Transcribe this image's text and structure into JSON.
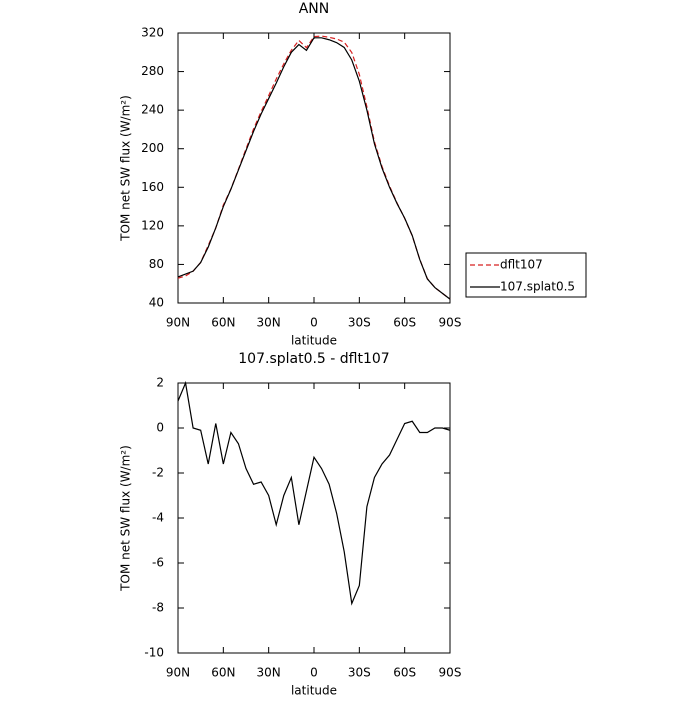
{
  "chart_data": [
    {
      "type": "line",
      "title": "ANN",
      "x_label": "latitude",
      "y_label": "TOM net SW flux (W/m²)",
      "x": [
        90,
        85,
        80,
        75,
        70,
        65,
        60,
        55,
        50,
        45,
        40,
        35,
        30,
        25,
        20,
        15,
        10,
        5,
        0,
        -5,
        -10,
        -15,
        -20,
        -25,
        -30,
        -35,
        -40,
        -45,
        -50,
        -55,
        -60,
        -65,
        -70,
        -75,
        -80,
        -85,
        -90
      ],
      "xlim": [
        90,
        -90
      ],
      "xticks": [
        {
          "value": 90,
          "label": "90N"
        },
        {
          "value": 60,
          "label": "60N"
        },
        {
          "value": 30,
          "label": "30N"
        },
        0,
        {
          "value": -30,
          "label": "30S"
        },
        {
          "value": -60,
          "label": "60S"
        },
        {
          "value": -90,
          "label": "90S"
        }
      ],
      "ylim": [
        40,
        320
      ],
      "yticks": [
        40,
        80,
        120,
        160,
        200,
        240,
        280,
        320
      ],
      "legend": "right",
      "series": [
        {
          "name": "dflt107",
          "color": "#d62020",
          "dash": true,
          "values": [
            65.8,
            68,
            73,
            82.1,
            99.6,
            117.8,
            141.6,
            158.2,
            178.7,
            199.8,
            220.5,
            238.4,
            255,
            272.3,
            288,
            302.2,
            312.3,
            304.8,
            316.3,
            316.8,
            315.5,
            313.8,
            310.5,
            299.8,
            277,
            243.5,
            207.2,
            181.6,
            161.2,
            143.5,
            127.8,
            109.7,
            85.2,
            65.2,
            56,
            50,
            44.1
          ]
        },
        {
          "name": "107.splat0.5",
          "color": "#000000",
          "dash": false,
          "values": [
            67,
            70,
            73,
            82,
            98,
            118,
            140,
            158,
            178,
            198,
            218,
            236,
            252,
            268,
            285,
            300,
            308,
            302,
            315,
            315,
            313,
            310,
            305,
            292,
            270,
            240,
            205,
            180,
            160,
            143,
            128,
            110,
            85,
            65,
            56,
            50,
            44
          ]
        }
      ]
    },
    {
      "type": "line",
      "title": "107.splat0.5 - dflt107",
      "x_label": "latitude",
      "y_label": "TOM net SW flux (W/m²)",
      "x": [
        90,
        85,
        80,
        75,
        70,
        65,
        60,
        55,
        50,
        45,
        40,
        35,
        30,
        25,
        20,
        15,
        10,
        5,
        0,
        -5,
        -10,
        -15,
        -20,
        -25,
        -30,
        -35,
        -40,
        -45,
        -50,
        -55,
        -60,
        -65,
        -70,
        -75,
        -80,
        -85,
        -90
      ],
      "xlim": [
        90,
        -90
      ],
      "xticks": [
        {
          "value": 90,
          "label": "90N"
        },
        {
          "value": 60,
          "label": "60N"
        },
        {
          "value": 30,
          "label": "30N"
        },
        0,
        {
          "value": -30,
          "label": "30S"
        },
        {
          "value": -60,
          "label": "60S"
        },
        {
          "value": -90,
          "label": "90S"
        }
      ],
      "ylim": [
        -10,
        2
      ],
      "yticks": [
        -10,
        -8,
        -6,
        -4,
        -2,
        0,
        2
      ],
      "series": [
        {
          "color": "#000000",
          "dash": false,
          "values": [
            1.2,
            2,
            0,
            -0.1,
            -1.6,
            0.2,
            -1.6,
            -0.2,
            -0.7,
            -1.8,
            -2.5,
            -2.4,
            -3,
            -4.3,
            -3,
            -2.2,
            -4.3,
            -2.8,
            -1.3,
            -1.8,
            -2.5,
            -3.8,
            -5.5,
            -7.8,
            -7,
            -3.5,
            -2.2,
            -1.6,
            -1.2,
            -0.5,
            0.2,
            0.3,
            -0.2,
            -0.2,
            0,
            0,
            -0.1
          ]
        }
      ]
    }
  ]
}
